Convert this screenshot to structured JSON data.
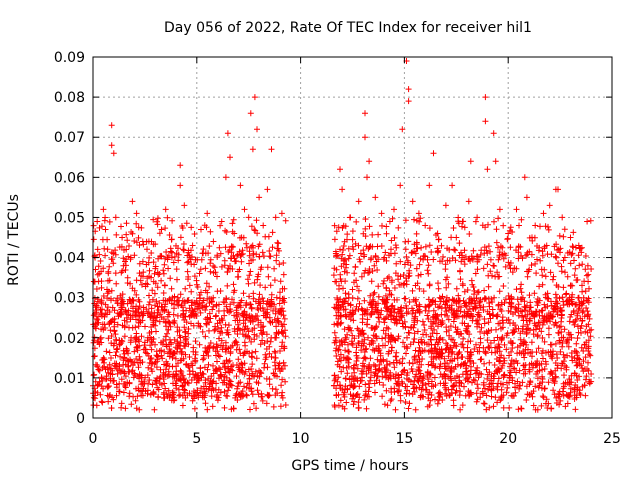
{
  "chart_data": {
    "type": "scatter",
    "title": "Day 056 of 2022, Rate Of TEC Index for receiver hil1",
    "xlabel": "GPS time / hours",
    "ylabel": "ROTI / TECUs",
    "xlim": [
      0,
      25
    ],
    "ylim": [
      0,
      0.09
    ],
    "x_ticks": [
      0,
      5,
      10,
      15,
      20,
      25
    ],
    "x_tick_labels": [
      "0",
      "5",
      "10",
      "15",
      "20",
      "25"
    ],
    "y_ticks": [
      0,
      0.01,
      0.02,
      0.03,
      0.04,
      0.05,
      0.06,
      0.07,
      0.08,
      0.09
    ],
    "y_tick_labels": [
      "0",
      "0.01",
      "0.02",
      "0.03",
      "0.04",
      "0.05",
      "0.06",
      "0.07",
      "0.08",
      "0.09"
    ],
    "grid": true,
    "marker": "+",
    "series_color": "#ff0000",
    "data_gap_hours": [
      9.3,
      11.6
    ],
    "segments": [
      {
        "x_start": 0.0,
        "x_end": 9.3
      },
      {
        "x_start": 11.6,
        "x_end": 24.0
      }
    ],
    "typical_range": [
      0.005,
      0.03
    ],
    "notable_peaks": [
      {
        "x": 0.9,
        "y": 0.073
      },
      {
        "x": 0.9,
        "y": 0.068
      },
      {
        "x": 1.0,
        "y": 0.066
      },
      {
        "x": 1.9,
        "y": 0.054
      },
      {
        "x": 4.2,
        "y": 0.063
      },
      {
        "x": 6.5,
        "y": 0.071
      },
      {
        "x": 6.6,
        "y": 0.065
      },
      {
        "x": 7.6,
        "y": 0.076
      },
      {
        "x": 7.8,
        "y": 0.08
      },
      {
        "x": 7.9,
        "y": 0.072
      },
      {
        "x": 7.7,
        "y": 0.067
      },
      {
        "x": 8.6,
        "y": 0.067
      },
      {
        "x": 11.9,
        "y": 0.062
      },
      {
        "x": 13.1,
        "y": 0.076
      },
      {
        "x": 13.1,
        "y": 0.07
      },
      {
        "x": 13.3,
        "y": 0.064
      },
      {
        "x": 14.9,
        "y": 0.072
      },
      {
        "x": 15.1,
        "y": 0.089
      },
      {
        "x": 15.2,
        "y": 0.082
      },
      {
        "x": 15.2,
        "y": 0.079
      },
      {
        "x": 16.4,
        "y": 0.066
      },
      {
        "x": 17.3,
        "y": 0.058
      },
      {
        "x": 18.2,
        "y": 0.064
      },
      {
        "x": 18.9,
        "y": 0.08
      },
      {
        "x": 18.9,
        "y": 0.074
      },
      {
        "x": 19.3,
        "y": 0.071
      },
      {
        "x": 19.0,
        "y": 0.062
      },
      {
        "x": 19.4,
        "y": 0.064
      },
      {
        "x": 20.8,
        "y": 0.06
      },
      {
        "x": 22.3,
        "y": 0.057
      },
      {
        "x": 22.4,
        "y": 0.057
      }
    ],
    "points": [
      [
        0.1,
        0.04
      ],
      [
        0.2,
        0.049
      ],
      [
        0.3,
        0.036
      ],
      [
        0.5,
        0.052
      ],
      [
        0.6,
        0.047
      ],
      [
        1.1,
        0.05
      ],
      [
        1.4,
        0.045
      ],
      [
        1.6,
        0.042
      ],
      [
        2.1,
        0.051
      ],
      [
        2.4,
        0.044
      ],
      [
        2.8,
        0.035
      ],
      [
        3.3,
        0.047
      ],
      [
        3.5,
        0.052
      ],
      [
        3.8,
        0.04
      ],
      [
        4.2,
        0.058
      ],
      [
        4.4,
        0.053
      ],
      [
        4.8,
        0.043
      ],
      [
        5.2,
        0.047
      ],
      [
        5.5,
        0.051
      ],
      [
        5.8,
        0.044
      ],
      [
        6.2,
        0.049
      ],
      [
        6.4,
        0.06
      ],
      [
        6.8,
        0.046
      ],
      [
        7.1,
        0.058
      ],
      [
        7.3,
        0.052
      ],
      [
        7.5,
        0.05
      ],
      [
        8.0,
        0.055
      ],
      [
        8.2,
        0.048
      ],
      [
        8.4,
        0.057
      ],
      [
        8.8,
        0.05
      ],
      [
        9.1,
        0.051
      ],
      [
        11.7,
        0.041
      ],
      [
        12.0,
        0.057
      ],
      [
        12.4,
        0.05
      ],
      [
        12.8,
        0.054
      ],
      [
        13.2,
        0.06
      ],
      [
        13.6,
        0.055
      ],
      [
        13.9,
        0.051
      ],
      [
        14.3,
        0.049
      ],
      [
        14.5,
        0.052
      ],
      [
        14.8,
        0.058
      ],
      [
        15.4,
        0.054
      ],
      [
        15.7,
        0.051
      ],
      [
        16.0,
        0.048
      ],
      [
        16.2,
        0.058
      ],
      [
        16.6,
        0.046
      ],
      [
        17.0,
        0.053
      ],
      [
        17.5,
        0.045
      ],
      [
        17.8,
        0.049
      ],
      [
        18.1,
        0.054
      ],
      [
        18.5,
        0.05
      ],
      [
        19.6,
        0.052
      ],
      [
        20.0,
        0.046
      ],
      [
        20.4,
        0.052
      ],
      [
        20.9,
        0.055
      ],
      [
        21.3,
        0.048
      ],
      [
        21.7,
        0.051
      ],
      [
        22.0,
        0.053
      ],
      [
        22.6,
        0.05
      ],
      [
        23.0,
        0.045
      ],
      [
        23.4,
        0.043
      ],
      [
        23.8,
        0.049
      ]
    ]
  }
}
